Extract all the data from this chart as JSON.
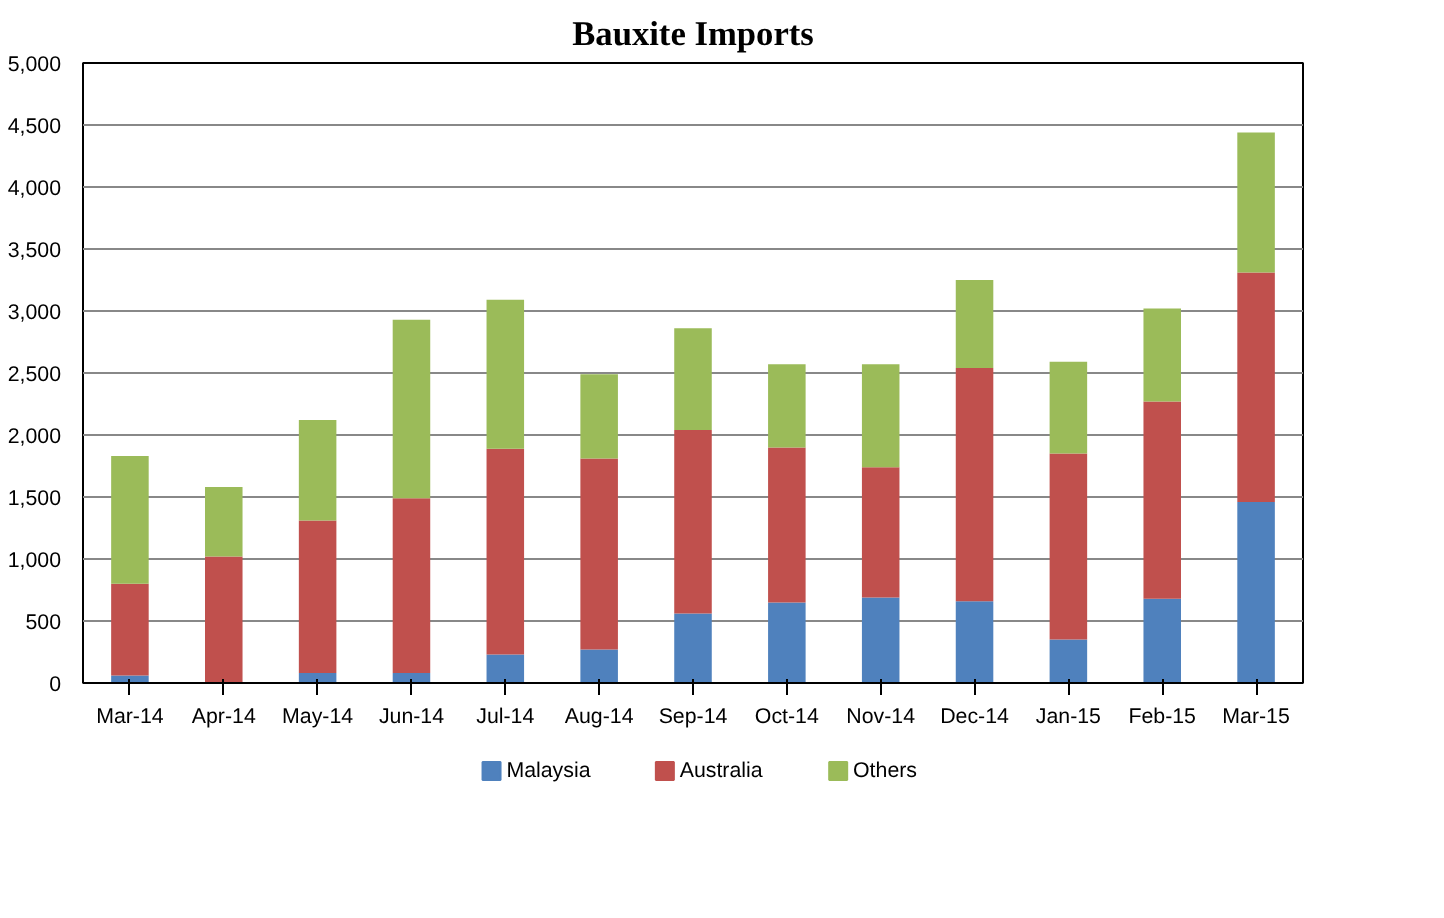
{
  "chart_data": {
    "type": "bar",
    "title": "Bauxite Imports",
    "stacked": true,
    "categories": [
      "Mar-14",
      "Apr-14",
      "May-14",
      "Jun-14",
      "Jul-14",
      "Aug-14",
      "Sep-14",
      "Oct-14",
      "Nov-14",
      "Dec-14",
      "Jan-15",
      "Feb-15",
      "Mar-15"
    ],
    "series": [
      {
        "name": "Malaysia",
        "color": "#4f81bd",
        "values": [
          60,
          0,
          80,
          80,
          230,
          270,
          560,
          650,
          690,
          660,
          350,
          680,
          1460
        ]
      },
      {
        "name": "Australia",
        "color": "#c0504d",
        "values": [
          740,
          1020,
          1230,
          1410,
          1660,
          1540,
          1480,
          1250,
          1050,
          1880,
          1500,
          1590,
          1850
        ]
      },
      {
        "name": "Others",
        "color": "#9bbb59",
        "values": [
          1030,
          560,
          810,
          1440,
          1200,
          680,
          820,
          670,
          830,
          710,
          740,
          750,
          1130
        ]
      }
    ],
    "ylim": [
      0,
      5000
    ],
    "yticks": [
      {
        "value": 0,
        "label": "0"
      },
      {
        "value": 500,
        "label": "500"
      },
      {
        "value": 1000,
        "label": "1,000"
      },
      {
        "value": 1500,
        "label": "1,500"
      },
      {
        "value": 2000,
        "label": "2,000"
      },
      {
        "value": 2500,
        "label": "2,500"
      },
      {
        "value": 3000,
        "label": "3,000"
      },
      {
        "value": 3500,
        "label": "3,500"
      },
      {
        "value": 4000,
        "label": "4,000"
      },
      {
        "value": 4500,
        "label": "4,500"
      },
      {
        "value": 5000,
        "label": "5,000"
      }
    ],
    "grid": "y",
    "legend": "bottom"
  }
}
